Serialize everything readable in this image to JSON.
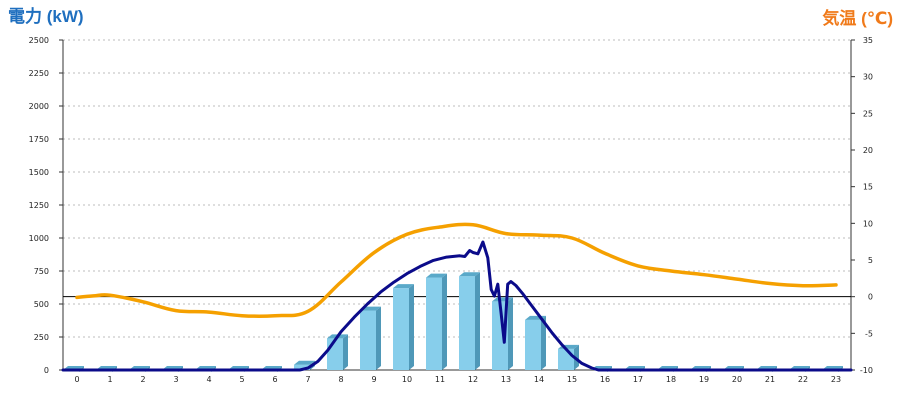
{
  "colors": {
    "power_axis_title": "#1f6fbf",
    "temp_axis_title": "#f07a1a",
    "bar_front": "#87ceeb",
    "bar_side": "#4f98b8",
    "bar_top": "#5aa9c9",
    "power_line": "#0b0b8a",
    "temp_line": "#f5a000",
    "grid": "#bdbdbd",
    "zero_line": "#000000"
  },
  "chart_data": {
    "type": "bar",
    "left_axis": {
      "title": "電力 (kW)",
      "ylim": [
        0,
        2500
      ],
      "ticks": [
        0,
        250,
        500,
        750,
        1000,
        1250,
        1500,
        1750,
        2000,
        2250,
        2500
      ]
    },
    "right_axis": {
      "title": "気温 (℃)",
      "ylim": [
        -10,
        35
      ],
      "ticks": [
        -10,
        -5,
        0,
        5,
        10,
        15,
        20,
        25,
        30,
        35
      ]
    },
    "categories": [
      "0",
      "1",
      "2",
      "3",
      "4",
      "5",
      "6",
      "7",
      "8",
      "9",
      "10",
      "11",
      "12",
      "13",
      "14",
      "15",
      "16",
      "17",
      "18",
      "19",
      "20",
      "21",
      "22",
      "23"
    ],
    "grid": true,
    "series": [
      {
        "type": "bar",
        "axis": "left",
        "values": [
          0,
          0,
          0,
          0,
          0,
          0,
          0,
          40,
          240,
          450,
          620,
          700,
          710,
          520,
          380,
          160,
          0,
          0,
          0,
          0,
          0,
          0,
          0,
          0
        ]
      },
      {
        "type": "line",
        "axis": "left",
        "x": [
          6.75,
          7.0,
          7.3,
          7.6,
          8.0,
          8.4,
          8.8,
          9.2,
          9.6,
          10.0,
          10.4,
          10.8,
          11.2,
          11.6,
          11.75,
          11.9,
          12.0,
          12.15,
          12.3,
          12.45,
          12.55,
          12.65,
          12.75,
          12.85,
          12.95,
          13.05,
          13.15,
          13.3,
          13.5,
          13.8,
          14.1,
          14.4,
          14.7,
          15.0,
          15.3,
          15.6,
          15.8
        ],
        "y": [
          0,
          15,
          65,
          150,
          290,
          400,
          500,
          590,
          665,
          730,
          785,
          830,
          855,
          865,
          860,
          905,
          890,
          880,
          970,
          850,
          610,
          560,
          650,
          430,
          210,
          650,
          670,
          640,
          580,
          480,
          380,
          280,
          190,
          110,
          50,
          15,
          0
        ]
      },
      {
        "type": "line",
        "axis": "right",
        "x": [
          0,
          0.5,
          1,
          2,
          3,
          4,
          5,
          6,
          7,
          8,
          9,
          10,
          11,
          12,
          13,
          14,
          15,
          16,
          17,
          18,
          19,
          20,
          21,
          22,
          23
        ],
        "y": [
          -0.1,
          0.1,
          0.2,
          -0.7,
          -1.9,
          -2.1,
          -2.6,
          -2.6,
          -2.0,
          2.0,
          6.0,
          8.5,
          9.5,
          9.8,
          8.6,
          8.4,
          8.0,
          5.9,
          4.2,
          3.5,
          3.0,
          2.4,
          1.8,
          1.5,
          1.6
        ]
      }
    ]
  }
}
